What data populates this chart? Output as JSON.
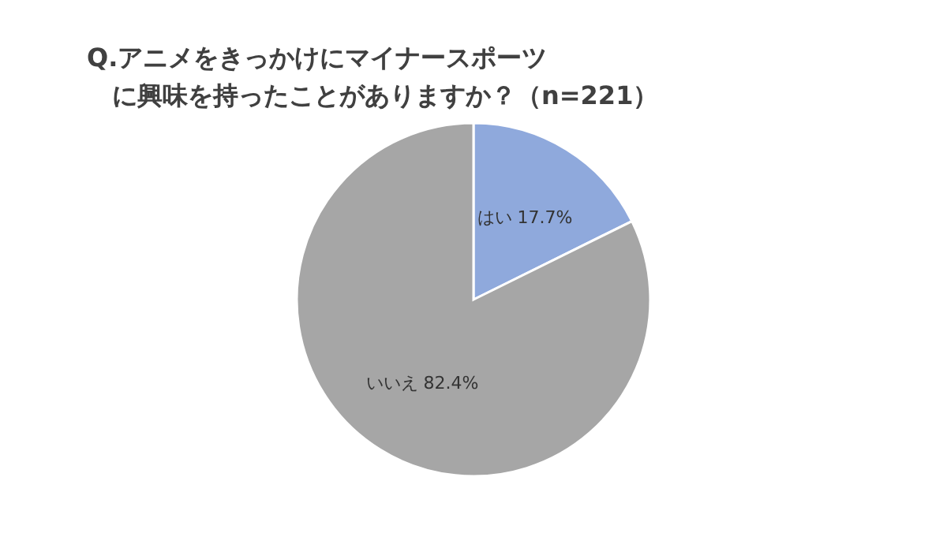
{
  "chart_data": {
    "type": "pie",
    "title": "Q.アニメをきっかけにマイナースポーツに興味を持ったことがありますか？（n=221）",
    "categories": [
      "はい",
      "いいえ"
    ],
    "values": [
      17.7,
      82.4
    ],
    "value_labels": [
      "17.7%",
      "82.4%"
    ],
    "colors": [
      "#8fa9dc",
      "#a6a6a6"
    ]
  }
}
